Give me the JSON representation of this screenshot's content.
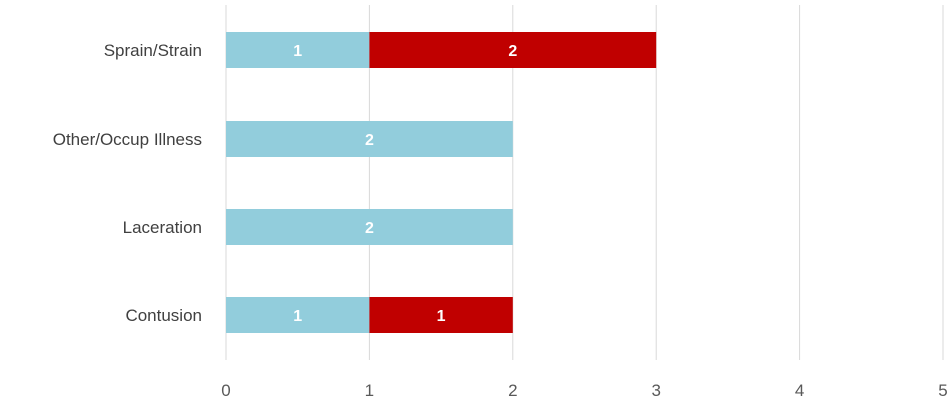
{
  "chart_data": {
    "type": "bar",
    "orientation": "horizontal",
    "stacked": true,
    "title": "",
    "xlabel": "",
    "ylabel": "",
    "categories": [
      "Contusion",
      "Laceration",
      "Other/Occup Illness",
      "Sprain/Strain"
    ],
    "series": [
      {
        "values": [
          1,
          2,
          2,
          1
        ],
        "labels": [
          "1",
          "2",
          "2",
          "1"
        ],
        "color": "#92CDDC"
      },
      {
        "values": [
          1,
          0,
          0,
          2
        ],
        "labels": [
          "1",
          "",
          "",
          "2"
        ],
        "color": "#C00000"
      }
    ],
    "xlim": [
      0,
      5
    ],
    "xticks": [
      "0",
      "1",
      "2",
      "3",
      "4",
      "5"
    ],
    "grid": "vertical",
    "legend": "none"
  }
}
